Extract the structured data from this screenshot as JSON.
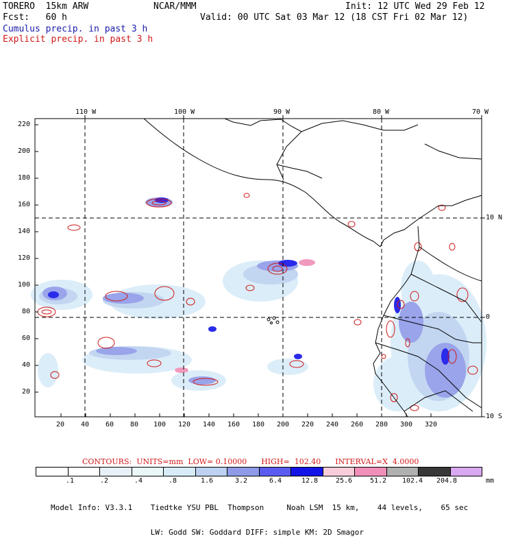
{
  "header": {
    "model": "TORERO  15km ARW",
    "org": "NCAR/MMM",
    "init": "Init: 12 UTC Wed 29 Feb 12",
    "fcst": "Fcst:   60 h",
    "valid": "Valid: 00 UTC Sat 03 Mar 12 (18 CST Fri 02 Mar 12)",
    "cumulus": "Cumulus precip. in past 3 h",
    "explicit": "Explicit precip. in past 3 h"
  },
  "map": {
    "lon_labels": [
      "110 W",
      "100 W",
      "90 W",
      "80 W",
      "70 W"
    ],
    "lat_labels": [
      "10 N",
      "0",
      "10 S"
    ],
    "y_ticks": [
      "220",
      "200",
      "180",
      "160",
      "140",
      "120",
      "100",
      "80",
      "60",
      "40",
      "20"
    ],
    "x_ticks": [
      "20",
      "40",
      "60",
      "80",
      "100",
      "120",
      "140",
      "160",
      "180",
      "200",
      "220",
      "240",
      "260",
      "280",
      "300",
      "320"
    ]
  },
  "contours": {
    "text": "CONTOURS:  UNITS=mm  LOW= 0.10000      HIGH=  102.40      INTERVAL=X  4.0000"
  },
  "colorbar": {
    "labels": [
      ".1",
      ".2",
      ".4",
      ".8",
      "1.6",
      "3.2",
      "6.4",
      "12.8",
      "25.6",
      "51.2",
      "102.4",
      "204.8",
      "mm"
    ],
    "colors": [
      "#ffffff",
      "#e8f0fa",
      "#eaf8fa",
      "#d8ecf8",
      "#bcd2f0",
      "#8f9be8",
      "#5a5cf0",
      "#1414e8",
      "#f8ccd8",
      "#f090b8",
      "#b0b0b0",
      "#383838",
      "#d8a8f0"
    ]
  },
  "model_info": {
    "line1": "Model Info: V3.3.1    Tiedtke YSU PBL  Thompson     Noah LSM  15 km,    44 levels,    65 sec",
    "line2": "                      LW: Godd SW: Goddard DIFF: simple KM: 2D Smagor"
  }
}
